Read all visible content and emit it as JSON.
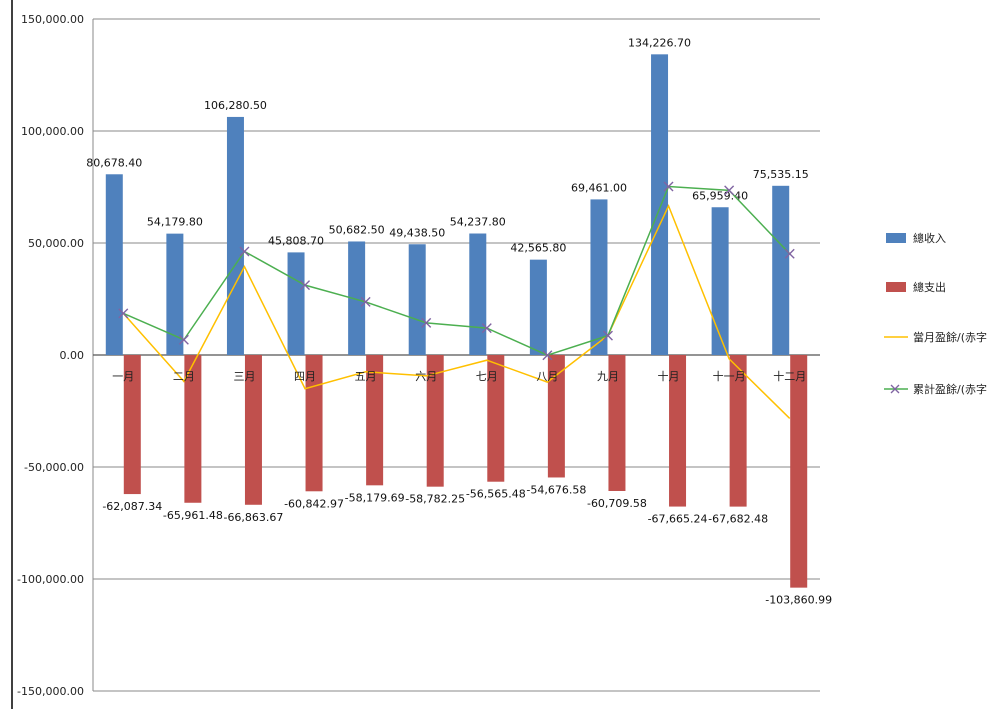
{
  "chart_data": {
    "type": "bar",
    "categories": [
      "一月",
      "二月",
      "三月",
      "四月",
      "五月",
      "六月",
      "七月",
      "八月",
      "九月",
      "十月",
      "十一月",
      "十二月"
    ],
    "series": [
      {
        "name": "總收入",
        "kind": "bar",
        "color": "#4f81bd",
        "values": [
          80678.4,
          54179.8,
          106280.5,
          45808.7,
          50682.5,
          49438.5,
          54237.8,
          42565.8,
          69461.0,
          134226.7,
          65959.4,
          75535.15
        ],
        "labels": [
          "80,678.40",
          "54,179.80",
          "106,280.50",
          "45,808.70",
          "50,682.50",
          "49,438.50",
          "54,237.80",
          "42,565.80",
          "69,461.00",
          "134,226.70",
          "65,959.40",
          "75,535.15"
        ]
      },
      {
        "name": "總支出",
        "kind": "bar",
        "color": "#c0504d",
        "values": [
          -62087.34,
          -65961.48,
          -66863.67,
          -60842.97,
          -58179.69,
          -58782.25,
          -56565.48,
          -54676.58,
          -60709.58,
          -67665.24,
          -67682.48,
          -103860.99
        ],
        "labels": [
          "-62,087.34",
          "-65,961.48",
          "-66,863.67",
          "-60,842.97",
          "-58,179.69",
          "-58,782.25",
          "-56,565.48",
          "-54,676.58",
          "-60,709.58",
          "-67,665.24",
          "-67,682.48",
          "-103,860.99"
        ]
      },
      {
        "name": "當月盈餘/(赤字",
        "kind": "line",
        "color": "#ffc000",
        "values": [
          18591.06,
          -11781.68,
          39416.83,
          -15034.27,
          -7497.19,
          -9343.75,
          -2327.68,
          -12110.78,
          8751.42,
          66561.46,
          -1723.08,
          -28325.84
        ]
      },
      {
        "name": "累計盈餘/(赤字",
        "kind": "line",
        "color": "#4caf50",
        "marker": "x",
        "marker_color": "#8064a2",
        "values": [
          18591.06,
          6809.38,
          46226.21,
          31191.94,
          23694.75,
          14351.0,
          12023.32,
          -87.46,
          8663.96,
          75225.42,
          73502.34,
          45176.5
        ]
      }
    ],
    "ylim": [
      -150000,
      150000
    ],
    "yticks": [
      "-150,000.00",
      "-100,000.00",
      "-50,000.00",
      "0.00",
      "50,000.00",
      "100,000.00",
      "150,000.00"
    ],
    "ytick_values": [
      -150000,
      -100000,
      -50000,
      0,
      50000,
      100000,
      150000
    ],
    "grid": true,
    "legend": "right"
  }
}
